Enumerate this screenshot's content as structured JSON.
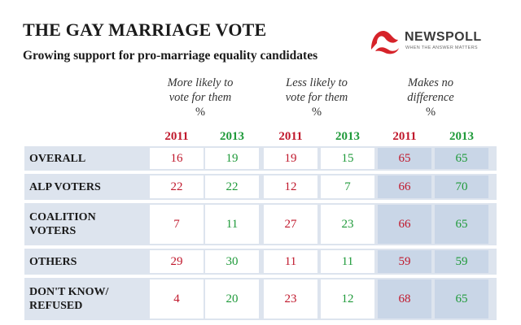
{
  "chart_data": {
    "type": "table",
    "title": "THE GAY MARRIAGE VOTE",
    "subtitle": "Growing support for pro-marriage equality candidates",
    "groups": [
      {
        "line1": "More likely to",
        "line2": "vote for them",
        "unit": "%"
      },
      {
        "line1": "Less likely to",
        "line2": "vote for them",
        "unit": "%"
      },
      {
        "line1": "Makes no",
        "line2": "difference",
        "unit": "%"
      }
    ],
    "years": [
      "2011",
      "2013"
    ],
    "rows": [
      {
        "label": "OVERALL",
        "values": [
          16,
          19,
          19,
          15,
          65,
          65
        ]
      },
      {
        "label": "ALP VOTERS",
        "values": [
          22,
          22,
          12,
          7,
          66,
          70
        ]
      },
      {
        "label": "COALITION\nVOTERS",
        "values": [
          7,
          11,
          27,
          23,
          66,
          65
        ]
      },
      {
        "label": "OTHERS",
        "values": [
          29,
          30,
          11,
          11,
          59,
          59
        ]
      },
      {
        "label": "DON'T KNOW/\nREFUSED",
        "values": [
          4,
          20,
          23,
          12,
          68,
          65
        ]
      }
    ],
    "colors": {
      "year_2011": "#c0182c",
      "year_2013": "#1f9a3a",
      "band": "#dde4ee",
      "band_alt": "#c9d6e7"
    }
  },
  "brand": {
    "name": "NEWSPOLL",
    "tagline": "WHEN THE ANSWER MATTERS",
    "color": "#d6232a"
  }
}
